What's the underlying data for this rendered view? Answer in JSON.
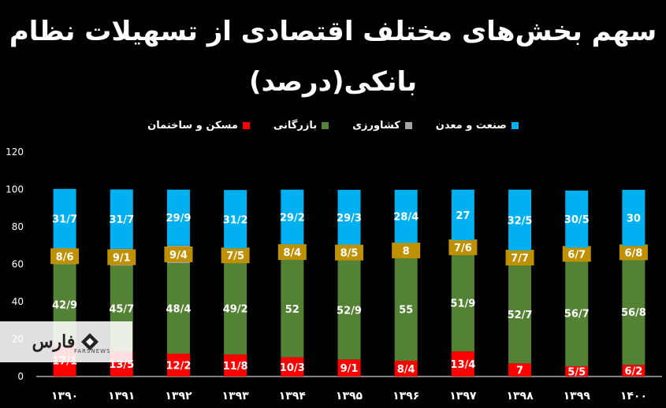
{
  "title_line1": "سهم بخش‌های مختلف اقتصادی از تسهیلات نظام",
  "title_line2": "بانکی(درصد)",
  "logo": {
    "text": "فارس",
    "sub": "FARSNEWS"
  },
  "chart_data": {
    "type": "bar",
    "stacked": true,
    "categories": [
      "۱۳۹۰",
      "۱۳۹۱",
      "۱۳۹۲",
      "۱۳۹۳",
      "۱۳۹۴",
      "۱۳۹۵",
      "۱۳۹۶",
      "۱۳۹۷",
      "۱۳۹۸",
      "۱۳۹۹",
      "۱۴۰۰"
    ],
    "ylim": [
      0,
      120
    ],
    "yticks": [
      0,
      20,
      40,
      60,
      80,
      100,
      120
    ],
    "legend_position": "top",
    "series": [
      {
        "name": "مسکن و ساختمان",
        "color": "#ff0000",
        "values": [
          17.1,
          13.5,
          12.2,
          11.8,
          10.3,
          9.1,
          8.4,
          13.4,
          7,
          5.5,
          6.2
        ],
        "labels": [
          "17/1",
          "13/5",
          "12/2",
          "11/8",
          "10/3",
          "9/1",
          "8/4",
          "13/4",
          "7",
          "5/5",
          "6/2"
        ]
      },
      {
        "name": "بازرگانی",
        "color": "#548235",
        "values": [
          42.9,
          45.7,
          48.4,
          49.2,
          52,
          52.9,
          55,
          51.9,
          52.7,
          56.7,
          56.8
        ],
        "labels": [
          "42/9",
          "45/7",
          "48/4",
          "49/2",
          "52",
          "52/9",
          "55",
          "51/9",
          "52/7",
          "56/7",
          "56/8"
        ]
      },
      {
        "name": "کشاورزی",
        "color": "#a5a5a5",
        "values": [
          8.6,
          9.1,
          9.4,
          7.5,
          8.4,
          8.5,
          8,
          7.6,
          7.7,
          6.7,
          6.8
        ],
        "labels": [
          "8/6",
          "9/1",
          "9/4",
          "7/5",
          "8/4",
          "8/5",
          "8",
          "7/6",
          "7/7",
          "6/7",
          "6/8"
        ],
        "label_box_color": "#bf9000"
      },
      {
        "name": "صنعت و معدن",
        "color": "#00b0f0",
        "values": [
          31.7,
          31.7,
          29.9,
          31.2,
          29.2,
          29.3,
          28.4,
          27,
          32.5,
          30.5,
          30
        ],
        "labels": [
          "31/7",
          "31/7",
          "29/9",
          "31/2",
          "29/2",
          "29/3",
          "28/4",
          "27",
          "32/5",
          "30/5",
          "30"
        ]
      }
    ]
  }
}
